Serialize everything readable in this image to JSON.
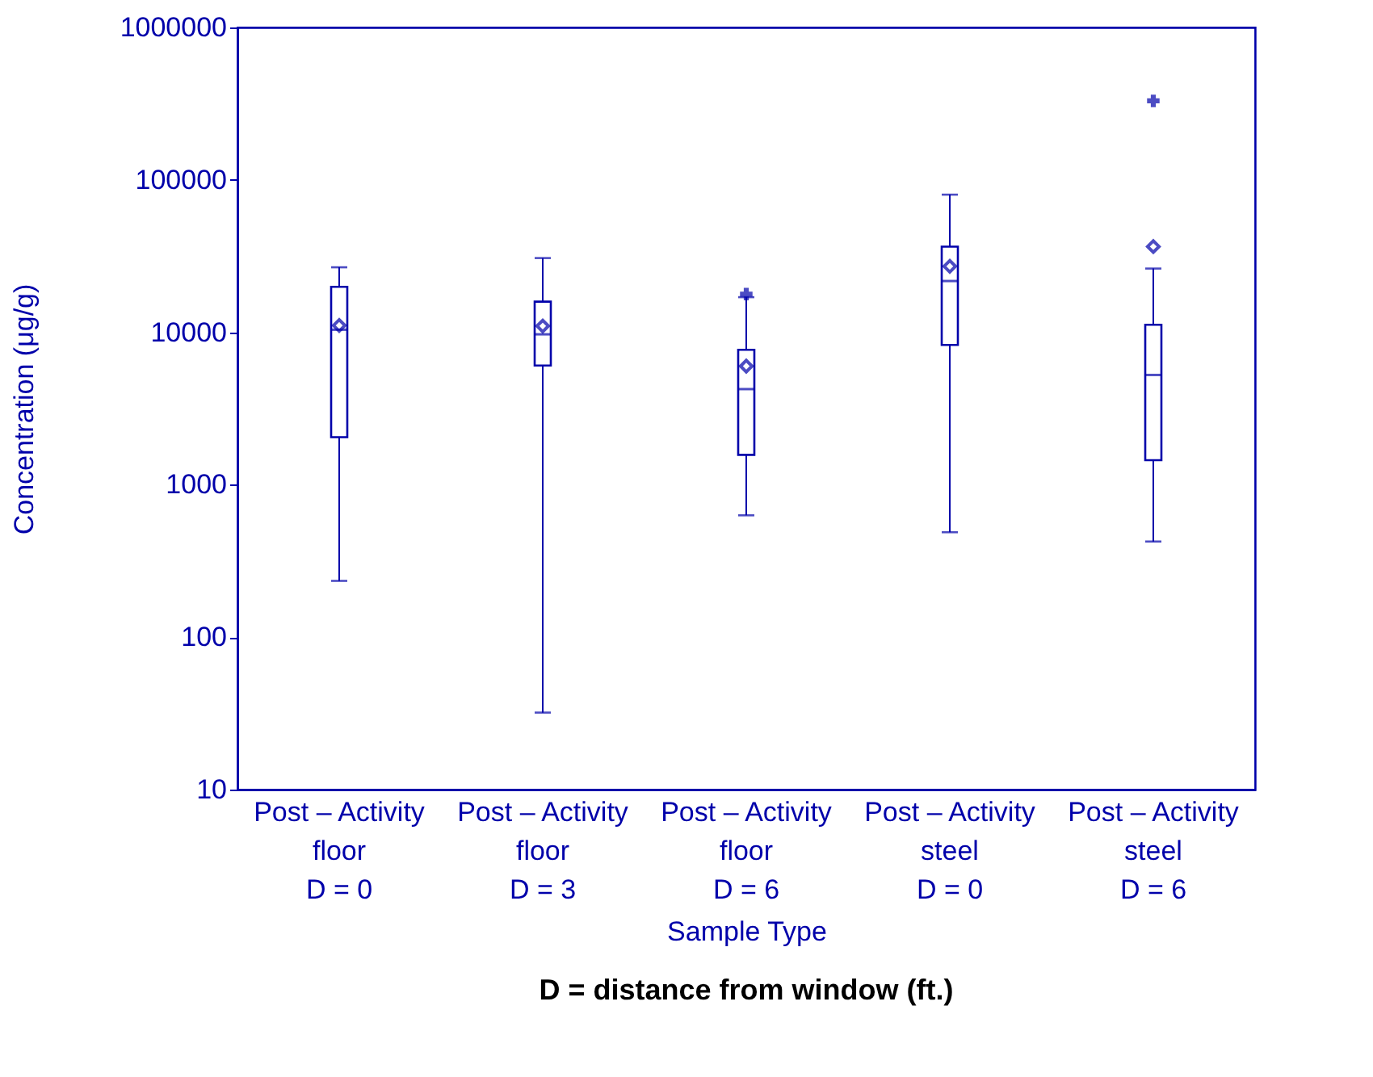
{
  "chart_data": {
    "type": "box",
    "xlabel": "Sample Type",
    "ylabel": "Concentration (μg/g)",
    "categories": [
      "Post – Activity\nfloor\nD = 0",
      "Post – Activity\nfloor\nD = 3",
      "Post – Activity\nfloor\nD = 6",
      "Post – Activity\nsteel\nD = 0",
      "Post – Activity\nsteel\nD = 6"
    ],
    "boxes": [
      {
        "low": 234,
        "q1": 2050,
        "median": 10400,
        "q3": 19900,
        "high": 26700,
        "mean": 11100
      },
      {
        "low": 32,
        "q1": 6050,
        "median": 9700,
        "q3": 15900,
        "high": 30700,
        "mean": 11000
      },
      {
        "low": 630,
        "q1": 1570,
        "median": 4240,
        "q3": 7680,
        "high": 17000,
        "mean": 6000,
        "outliers": [
          17800
        ]
      },
      {
        "low": 488,
        "q1": 8260,
        "median": 21700,
        "q3": 36500,
        "high": 80000,
        "mean": 27100
      },
      {
        "low": 424,
        "q1": 1450,
        "median": 5250,
        "q3": 11200,
        "high": 26200,
        "mean": 36500,
        "outliers": [
          330000
        ]
      }
    ],
    "color": "#0000aa",
    "log": true,
    "ylim": [
      10,
      1000000
    ],
    "yticks": [
      10,
      100,
      1000,
      10000,
      100000,
      1000000
    ],
    "grid": false,
    "annotations": [
      "D = distance from window (ft.)"
    ]
  }
}
